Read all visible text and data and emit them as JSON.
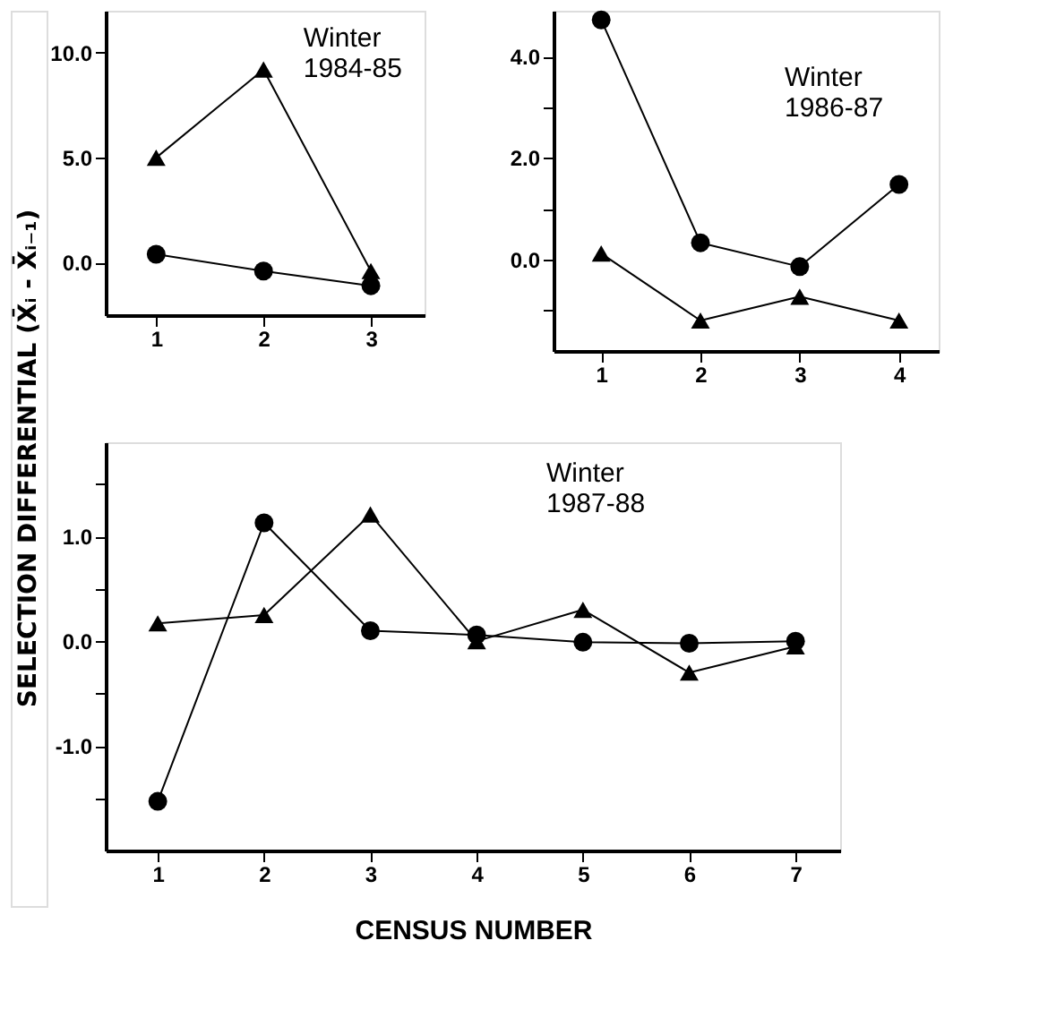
{
  "chart_data": [
    {
      "type": "line",
      "title": "Winter 1984-85",
      "x": [
        1,
        2,
        3
      ],
      "xlim": [
        0.53,
        3.5
      ],
      "xticks": [
        1,
        2,
        3
      ],
      "ylim": [
        -2.5,
        12
      ],
      "yticks": [
        {
          "value": 0,
          "label": "0.0"
        },
        {
          "value": 5,
          "label": "5.0"
        },
        {
          "value": 10,
          "label": "10.0"
        }
      ],
      "grid": false,
      "series": [
        {
          "color": "#000000",
          "marker": "triangle",
          "values": [
            5.0,
            9.2,
            -0.4
          ]
        },
        {
          "color": "#000000",
          "marker": "circle",
          "values": [
            0.4,
            -0.4,
            -1.1
          ]
        }
      ]
    },
    {
      "type": "line",
      "title": "Winter 1986-87",
      "x": [
        1,
        2,
        3,
        4
      ],
      "xlim": [
        0.52,
        4.4
      ],
      "xticks": [
        1,
        2,
        3,
        4
      ],
      "ylim": [
        -1.8,
        4.9
      ],
      "yticks": [
        {
          "value": -1,
          "label": null
        },
        {
          "value": 0,
          "label": "0.0"
        },
        {
          "value": 1,
          "label": null
        },
        {
          "value": 2,
          "label": "2.0"
        },
        {
          "value": 3,
          "label": null
        },
        {
          "value": 4,
          "label": "4.0"
        }
      ],
      "grid": false,
      "series": [
        {
          "color": "#000000",
          "marker": "circle",
          "values": [
            4.72,
            0.33,
            -0.14,
            1.48
          ]
        },
        {
          "color": "#000000",
          "marker": "triangle",
          "values": [
            0.12,
            -1.2,
            -0.73,
            -1.2
          ]
        }
      ]
    },
    {
      "type": "line",
      "title": "Winter 1987-88",
      "xlabel": "CENSUS NUMBER",
      "ylabel": "SELECTION DIFFERENTIAL  (X̄ᵢ - X̄ᵢ₋₁)",
      "x": [
        1,
        2,
        3,
        4,
        5,
        6,
        7
      ],
      "xlim": [
        0.51,
        7.42
      ],
      "xticks": [
        1,
        2,
        3,
        4,
        5,
        6,
        7
      ],
      "ylim": [
        -2.0,
        1.9
      ],
      "yticks": [
        {
          "value": -1.5,
          "label": null
        },
        {
          "value": -1,
          "label": "-1.0"
        },
        {
          "value": -0.5,
          "label": null
        },
        {
          "value": 0,
          "label": "0.0"
        },
        {
          "value": 0.5,
          "label": null
        },
        {
          "value": 1,
          "label": "1.0"
        },
        {
          "value": 1.5,
          "label": null
        }
      ],
      "grid": false,
      "series": [
        {
          "color": "#000000",
          "marker": "circle",
          "values": [
            -1.53,
            1.13,
            0.1,
            0.06,
            -0.01,
            -0.02,
            0.0
          ]
        },
        {
          "color": "#000000",
          "marker": "triangle",
          "values": [
            0.17,
            0.25,
            1.21,
            0.0,
            0.3,
            -0.3,
            -0.05
          ]
        }
      ]
    }
  ]
}
